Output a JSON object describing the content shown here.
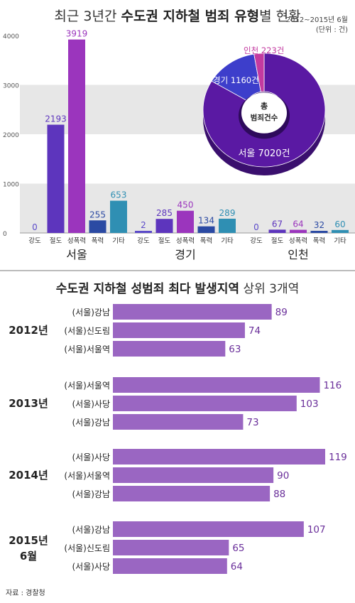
{
  "title1": {
    "prefix": "최근 3년간 ",
    "strong": "수도권 지하철 범죄 유형",
    "suffix": "별 현황"
  },
  "period": "2012~2015년 6월",
  "unit": "(단위 : 건)",
  "title2": {
    "strong": "수도권 지하철 성범죄 최다 발생지역",
    "suffix": " 상위 3개역"
  },
  "source": "자료 : 경찰청",
  "colors": {
    "강도": "#5b4ac9",
    "절도": "#5d35bd",
    "성폭력": "#9b35bd",
    "폭력": "#2b4aa3",
    "기타": "#2f8fb3",
    "band": "#e7e7e7",
    "hbar": "#9a66c2",
    "pie_seoul": "#5a19a3",
    "pie_gyeonggi": "#3d3ecb",
    "pie_incheon": "#c33aa0"
  },
  "chart_data": [
    {
      "type": "bar",
      "yticks": [
        0,
        1000,
        2000,
        3000,
        4000
      ],
      "ylim": [
        0,
        4000
      ],
      "categories": [
        "강도",
        "절도",
        "성폭력",
        "폭력",
        "기타"
      ],
      "groups": [
        {
          "name": "서울",
          "values": [
            0,
            2193,
            3919,
            255,
            653
          ]
        },
        {
          "name": "경기",
          "values": [
            2,
            285,
            450,
            134,
            289
          ]
        },
        {
          "name": "인천",
          "values": [
            0,
            67,
            64,
            32,
            60
          ]
        }
      ]
    },
    {
      "type": "pie",
      "center_label": [
        "총",
        "범죄건수"
      ],
      "slices": [
        {
          "name": "서울",
          "value": 7020,
          "label": "서울 7020건"
        },
        {
          "name": "경기",
          "value": 1160,
          "label": "경기 1160건"
        },
        {
          "name": "인천",
          "value": 223,
          "label": "인천 223건"
        }
      ]
    },
    {
      "type": "bar",
      "orientation": "horizontal",
      "xlim": [
        0,
        120
      ],
      "groups": [
        {
          "year": [
            "2012년"
          ],
          "items": [
            {
              "station": "(서울)강남",
              "value": 89
            },
            {
              "station": "(서울)신도림",
              "value": 74
            },
            {
              "station": "(서울)서울역",
              "value": 63
            }
          ]
        },
        {
          "year": [
            "2013년"
          ],
          "items": [
            {
              "station": "(서울)서울역",
              "value": 116
            },
            {
              "station": "(서울)사당",
              "value": 103
            },
            {
              "station": "(서울)강남",
              "value": 73
            }
          ]
        },
        {
          "year": [
            "2014년"
          ],
          "items": [
            {
              "station": "(서울)사당",
              "value": 119
            },
            {
              "station": "(서울)서울역",
              "value": 90
            },
            {
              "station": "(서울)강남",
              "value": 88
            }
          ]
        },
        {
          "year": [
            "2015년",
            "6월"
          ],
          "items": [
            {
              "station": "(서울)강남",
              "value": 107
            },
            {
              "station": "(서울)신도림",
              "value": 65
            },
            {
              "station": "(서울)사당",
              "value": 64
            }
          ]
        }
      ]
    }
  ]
}
